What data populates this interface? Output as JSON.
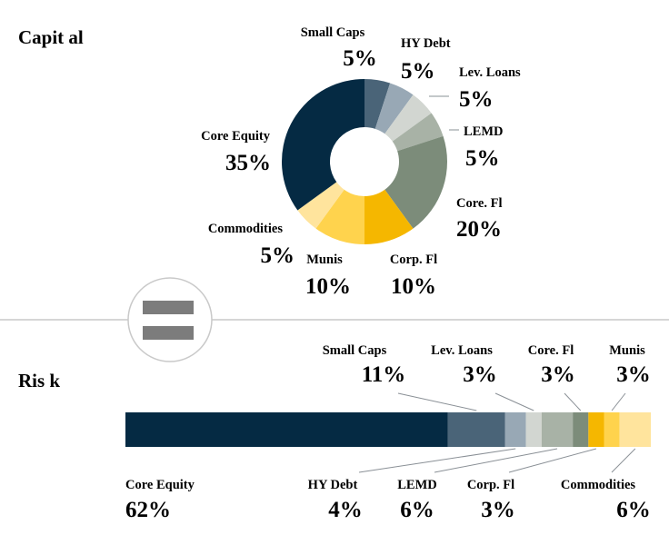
{
  "capital": {
    "title": "Capit al",
    "chart_data": {
      "type": "pie",
      "title": "Capit al",
      "categories": [
        "Small Caps",
        "HY Debt",
        "Lev. Loans",
        "LEMD",
        "Core. Fl",
        "Corp. Fl",
        "Munis",
        "Commodities",
        "Core Equity"
      ],
      "values": [
        5,
        5,
        5,
        5,
        20,
        10,
        10,
        5,
        35
      ],
      "value_labels": [
        "5%",
        "5%",
        "5%",
        "5%",
        "20%",
        "10%",
        "10%",
        "5%",
        "35%"
      ],
      "colors": [
        "#4a6478",
        "#98a8b5",
        "#d2d6d1",
        "#a8b2a6",
        "#7c8c7a",
        "#f5b700",
        "#ffd34d",
        "#ffe49d",
        "#052a43"
      ],
      "donut": true
    }
  },
  "divider": {
    "icon": "equals-icon"
  },
  "risk": {
    "title": "Ris k",
    "chart_data": {
      "type": "bar",
      "orientation": "horizontal-stacked",
      "title": "Ris k",
      "categories": [
        "Core Equity",
        "Small Caps",
        "HY Debt",
        "Lev. Loans",
        "LEMD",
        "Core. Fl",
        "Corp. Fl",
        "Munis",
        "Commodities"
      ],
      "values": [
        62,
        11,
        4,
        3,
        6,
        3,
        3,
        3,
        6
      ],
      "value_labels": [
        "62%",
        "11%",
        "4%",
        "3%",
        "6%",
        "3%",
        "3%",
        "3%",
        "6%"
      ],
      "colors": [
        "#052a43",
        "#4a6478",
        "#98a8b5",
        "#d2d6d1",
        "#a8b2a6",
        "#7c8c7a",
        "#f5b700",
        "#ffd34d",
        "#ffe49d"
      ]
    }
  }
}
